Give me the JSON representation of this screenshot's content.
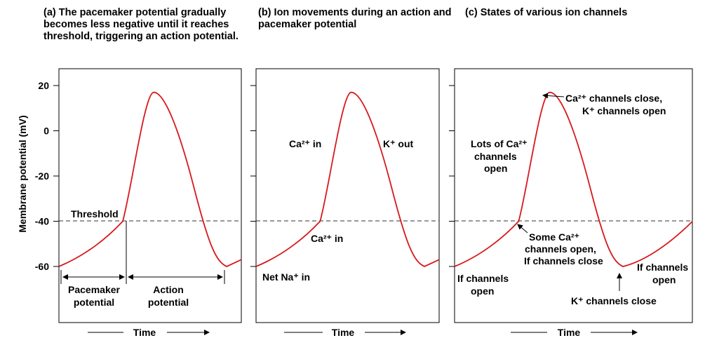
{
  "chart_data": {
    "type": "line",
    "ylabel": "Membrane potential (mV)",
    "xlabel": "Time",
    "y_ticks": [
      "20",
      "0",
      "-20",
      "-40",
      "-60"
    ],
    "ylim": [
      -67,
      27
    ],
    "threshold_mV": -40,
    "curve": [
      {
        "t": 0.0,
        "v": -60
      },
      {
        "t": 0.1,
        "v": -56
      },
      {
        "t": 0.2,
        "v": -50
      },
      {
        "t": 0.35,
        "v": -40
      },
      {
        "t": 0.45,
        "v": -5
      },
      {
        "t": 0.52,
        "v": 17
      },
      {
        "t": 0.62,
        "v": 5
      },
      {
        "t": 0.8,
        "v": -40
      },
      {
        "t": 0.92,
        "v": -60
      },
      {
        "t": 1.0,
        "v": -57
      }
    ],
    "panels": [
      {
        "tag": "(a)",
        "title": "The pacemaker potential gradually becomes less negative until it reaches threshold, triggering an action potential.",
        "labels": {
          "threshold": "Threshold",
          "pacemaker_1": "Pacemaker",
          "pacemaker_2": "potential",
          "action_1": "Action",
          "action_2": "potential"
        }
      },
      {
        "tag": "(b)",
        "title": "Ion movements during an action and pacemaker potential",
        "labels": {
          "ca_in_upper": "Ca²⁺ in",
          "k_out": "K⁺ out",
          "ca_in_lower": "Ca²⁺ in",
          "na_in": "Net Na⁺ in"
        }
      },
      {
        "tag": "(c)",
        "title": "States of various ion channels",
        "labels": {
          "ca_close_1": "Ca²⁺ channels close,",
          "ca_close_2": "K⁺ channels open",
          "lots_1": "Lots of Ca²⁺",
          "lots_2": "channels",
          "lots_3": "open",
          "some_1": "Some Ca²⁺",
          "some_2": "channels open,",
          "some_3": "If channels close",
          "if_open_left_1": "If channels",
          "if_open_left_2": "open",
          "if_open_right_1": "If channels",
          "if_open_right_2": "open",
          "k_close": "K⁺ channels close"
        }
      }
    ]
  }
}
